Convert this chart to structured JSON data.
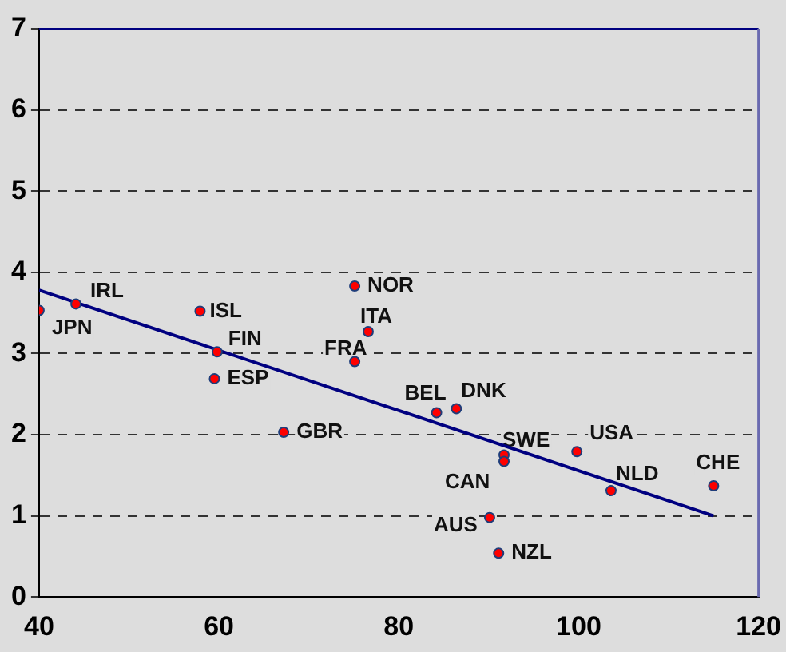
{
  "chart_data": {
    "type": "scatter",
    "xlim": [
      40,
      120
    ],
    "xticks": [
      40,
      60,
      80,
      100,
      120
    ],
    "ylim": [
      0,
      7
    ],
    "yticks": [
      0,
      1,
      2,
      3,
      4,
      5,
      6,
      7
    ],
    "grid": "y",
    "legend": false,
    "series": [
      {
        "marker": "circle",
        "color": "#ff0000",
        "x": [
          40,
          44.1,
          57.9,
          59.8,
          59.5,
          75.1,
          75.1,
          76.6,
          67.2,
          84.2,
          86.4,
          91.7,
          91.7,
          99.8,
          103.6,
          115.0,
          90.1,
          91.1
        ],
        "values": [
          3.53,
          3.61,
          3.52,
          3.02,
          2.69,
          2.9,
          3.83,
          3.27,
          2.03,
          2.27,
          2.32,
          1.75,
          1.67,
          1.79,
          1.31,
          1.37,
          0.98,
          0.54
        ]
      },
      {
        "type": "line",
        "color": "#000080",
        "x": [
          40,
          115
        ],
        "values": [
          3.78,
          1.0
        ]
      }
    ],
    "annotations": [
      {
        "text": "JPN",
        "x": 40,
        "y": 3.53
      },
      {
        "text": "IRL",
        "x": 44.1,
        "y": 3.61
      },
      {
        "text": "ISL",
        "x": 57.9,
        "y": 3.52
      },
      {
        "text": "FIN",
        "x": 59.8,
        "y": 3.02
      },
      {
        "text": "ESP",
        "x": 59.5,
        "y": 2.69
      },
      {
        "text": "FRA",
        "x": 75.1,
        "y": 2.9
      },
      {
        "text": "NOR",
        "x": 75.1,
        "y": 3.83
      },
      {
        "text": "ITA",
        "x": 76.6,
        "y": 3.27
      },
      {
        "text": "GBR",
        "x": 67.2,
        "y": 2.03
      },
      {
        "text": "BEL",
        "x": 84.2,
        "y": 2.27
      },
      {
        "text": "DNK",
        "x": 86.4,
        "y": 2.32
      },
      {
        "text": "SWE",
        "x": 91.7,
        "y": 1.75
      },
      {
        "text": "CAN",
        "x": 91.7,
        "y": 1.67
      },
      {
        "text": "USA",
        "x": 99.8,
        "y": 1.79
      },
      {
        "text": "NLD",
        "x": 103.6,
        "y": 1.31
      },
      {
        "text": "CHE",
        "x": 115.0,
        "y": 1.37
      },
      {
        "text": "AUS",
        "x": 90.1,
        "y": 0.98
      },
      {
        "text": "NZL",
        "x": 91.1,
        "y": 0.54
      }
    ]
  }
}
